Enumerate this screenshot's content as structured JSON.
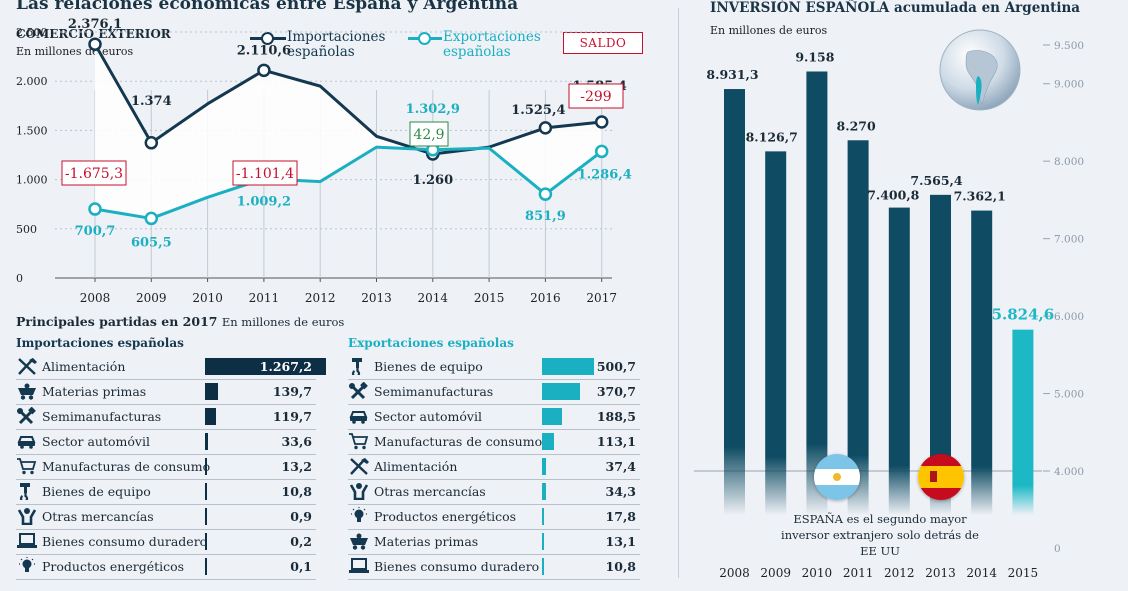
{
  "title": "Las relaciones económicas entre España y Argentina",
  "comercio": {
    "subtitle": "COMERCIO EXTERIOR",
    "unit": "En millones de euros",
    "legend_imp": "Importaciones españolas",
    "legend_exp": "Exportaciones españolas",
    "saldo_label": "SALDO"
  },
  "chart_data": [
    {
      "type": "line",
      "title": "COMERCIO EXTERIOR",
      "ylabel": "En millones de euros",
      "x": [
        "2008",
        "2009",
        "2010",
        "2011",
        "2012",
        "2013",
        "2014",
        "2015",
        "2016",
        "2017"
      ],
      "ylim": [
        0,
        2500
      ],
      "yticks": [
        0,
        500,
        1000,
        1500,
        2000,
        2500
      ],
      "ytick_labels": [
        "0",
        "500",
        "1.000",
        "1.500",
        "2.000",
        "2.500"
      ],
      "series": [
        {
          "name": "Importaciones españolas",
          "color": "#14384f",
          "values": [
            2376.1,
            1374,
            1770,
            2110.6,
            1950,
            1440,
            1260,
            1330,
            1525.4,
            1585.4
          ],
          "labels": [
            "2.376,1",
            "1.374",
            null,
            "2.110,6",
            null,
            null,
            "1.260",
            null,
            "1.525,4",
            "1.585,4"
          ]
        },
        {
          "name": "Exportaciones españolas",
          "color": "#1ab0c2",
          "values": [
            700.7,
            605.5,
            820,
            1009.2,
            980,
            1330,
            1302.9,
            1320,
            851.9,
            1286.4
          ],
          "labels": [
            "700,7",
            "605,5",
            null,
            "1.009,2",
            null,
            null,
            "1.302,9",
            null,
            "851,9",
            "1.286,4"
          ]
        }
      ],
      "saldo": [
        {
          "year": "2008",
          "label": "-1.675,3",
          "color": "#c8102e"
        },
        {
          "year": "2011",
          "label": "-1.101,4",
          "color": "#c8102e"
        },
        {
          "year": "2014",
          "label": "42,9",
          "color": "#2e8b4a"
        },
        {
          "year": "2017",
          "label": "-299",
          "color": "#c8102e"
        }
      ]
    },
    {
      "type": "bar",
      "title": "INVERSIÓN ESPAÑOLA acumulada en Argentina",
      "ylabel": "En millones de euros",
      "categories": [
        "2008",
        "2009",
        "2010",
        "2011",
        "2012",
        "2013",
        "2014",
        "2015"
      ],
      "values": [
        8931.3,
        8126.7,
        9158,
        8270,
        7400.8,
        7565.4,
        7362.1,
        5824.6
      ],
      "labels": [
        "8.931,3",
        "8.126,7",
        "9.158",
        "8.270",
        "7.400,8",
        "7.565,4",
        "7.362,1",
        "5.824,6"
      ],
      "colors": [
        "#0f4c63",
        "#0f4c63",
        "#0f4c63",
        "#0f4c63",
        "#0f4c63",
        "#0f4c63",
        "#0f4c63",
        "#1cb8c6"
      ],
      "ylim": [
        0,
        9500
      ],
      "yticks": [
        0,
        4000,
        5000,
        6000,
        7000,
        8000,
        9000,
        9500
      ],
      "ytick_labels": [
        "0",
        "4.000",
        "5.000",
        "6.000",
        "7.000",
        "8.000",
        "9.000",
        "9.500"
      ]
    },
    {
      "type": "bar",
      "title": "Importaciones españolas",
      "categories": [
        "Alimentación",
        "Materias primas",
        "Semimanufacturas",
        "Sector automóvil",
        "Manufacturas de consumo",
        "Bienes de equipo",
        "Otras mercancías",
        "Bienes consumo duradero",
        "Productos energéticos"
      ],
      "values": [
        1267.2,
        139.7,
        119.7,
        33.6,
        13.2,
        10.8,
        0.9,
        0.2,
        0.1
      ],
      "labels": [
        "1.267,2",
        "139,7",
        "119,7",
        "33,6",
        "13,2",
        "10,8",
        "0,9",
        "0,2",
        "0,1"
      ],
      "icons": [
        "utensils-icon",
        "mine-cart-icon",
        "tools-icon",
        "car-icon",
        "shopping-cart-icon",
        "crane-hook-icon",
        "person-icon",
        "laptop-icon",
        "lightbulb-icon"
      ]
    },
    {
      "type": "bar",
      "title": "Exportaciones españolas",
      "categories": [
        "Bienes de equipo",
        "Semimanufacturas",
        "Sector automóvil",
        "Manufacturas de consumo",
        "Alimentación",
        "Otras mercancías",
        "Productos energéticos",
        "Materias primas",
        "Bienes consumo duradero"
      ],
      "values": [
        500.7,
        370.7,
        188.5,
        113.1,
        37.4,
        34.3,
        17.8,
        13.1,
        10.8
      ],
      "labels": [
        "500,7",
        "370,7",
        "188,5",
        "113,1",
        "37,4",
        "34,3",
        "17,8",
        "13,1",
        "10,8"
      ],
      "icons": [
        "crane-hook-icon",
        "tools-icon",
        "car-icon",
        "shopping-cart-icon",
        "utensils-icon",
        "person-icon",
        "lightbulb-icon",
        "mine-cart-icon",
        "laptop-icon"
      ]
    }
  ],
  "partidas": {
    "title": "Principales partidas en 2017",
    "unit": "En millones de euros",
    "imp_title": "Importaciones españolas",
    "exp_title": "Exportaciones españolas"
  },
  "inversion": {
    "title": "INVERSIÓN ESPAÑOLA acumulada en Argentina",
    "unit": "En millones de euros",
    "note": "ESPAÑA es el segundo mayor inversor extranjero solo detrás de EE UU"
  },
  "colors": {
    "imp": "#14384f",
    "exp": "#1ab0c2",
    "neg": "#c8102e",
    "pos": "#2e8b4a",
    "bar_dark": "#0f4c63",
    "bar_light": "#1cb8c6"
  }
}
